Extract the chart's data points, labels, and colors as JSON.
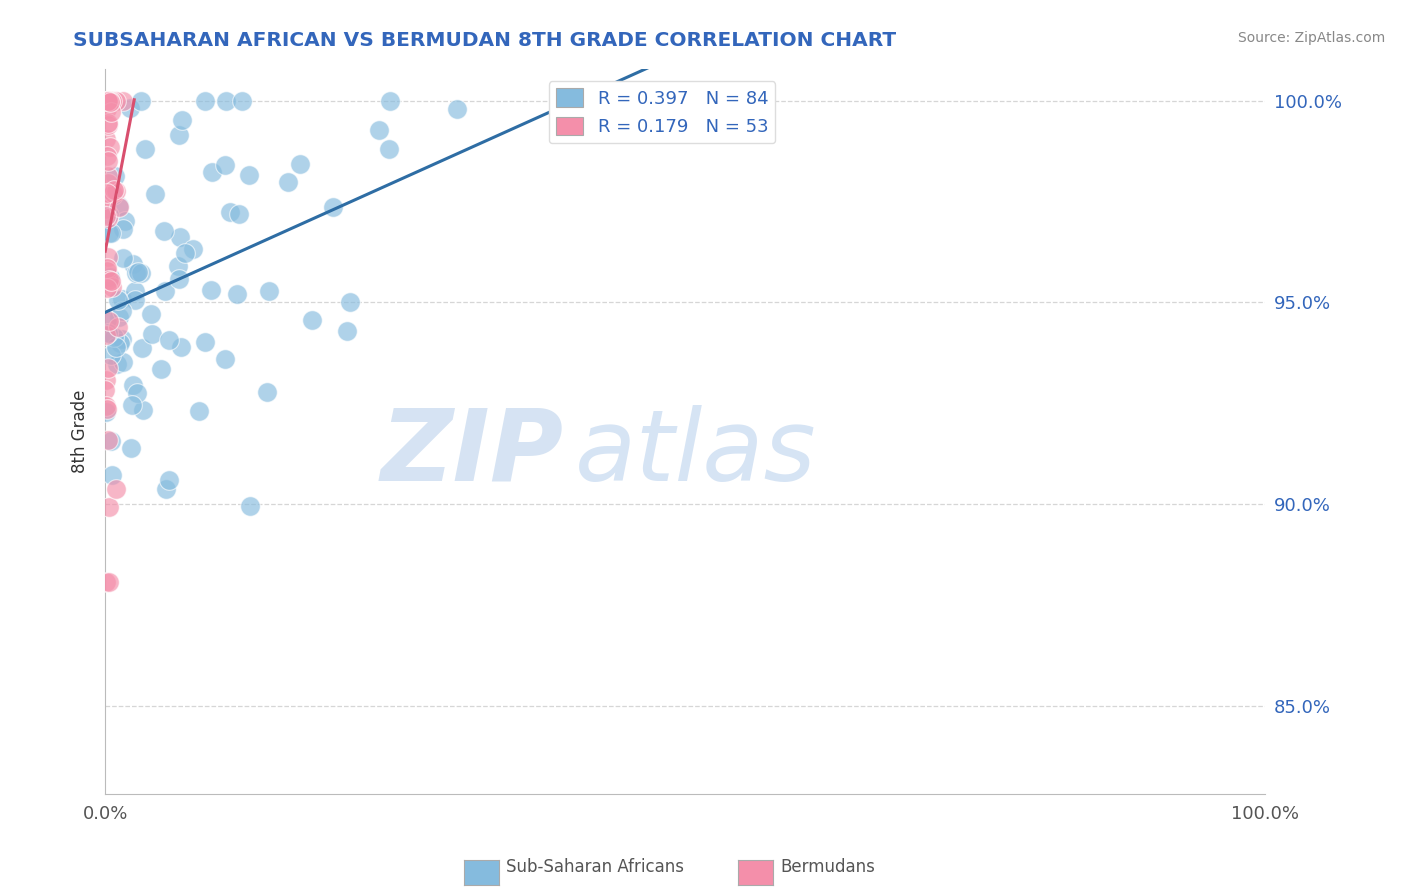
{
  "title": "SUBSAHARAN AFRICAN VS BERMUDAN 8TH GRADE CORRELATION CHART",
  "source_text": "Source: ZipAtlas.com",
  "ylabel": "8th Grade",
  "watermark_zip": "ZIP",
  "watermark_atlas": "atlas",
  "xlim": [
    0.0,
    1.0
  ],
  "ylim": [
    0.828,
    1.008
  ],
  "yticks": [
    0.85,
    0.9,
    0.95,
    1.0
  ],
  "ytick_labels": [
    "85.0%",
    "90.0%",
    "95.0%",
    "100.0%"
  ],
  "blue_color": "#85BBDE",
  "pink_color": "#F48FAA",
  "blue_line_color": "#2E6DA4",
  "pink_line_color": "#D94F6E",
  "blue_R": 0.397,
  "pink_R": 0.179,
  "blue_N": 84,
  "pink_N": 53,
  "background_color": "#FFFFFF",
  "grid_color": "#CCCCCC",
  "title_color": "#3366BB",
  "source_color": "#888888",
  "watermark_zip_color": "#C8DCF0",
  "watermark_atlas_color": "#B8D0E8",
  "blue_seed": 42,
  "pink_seed": 7
}
